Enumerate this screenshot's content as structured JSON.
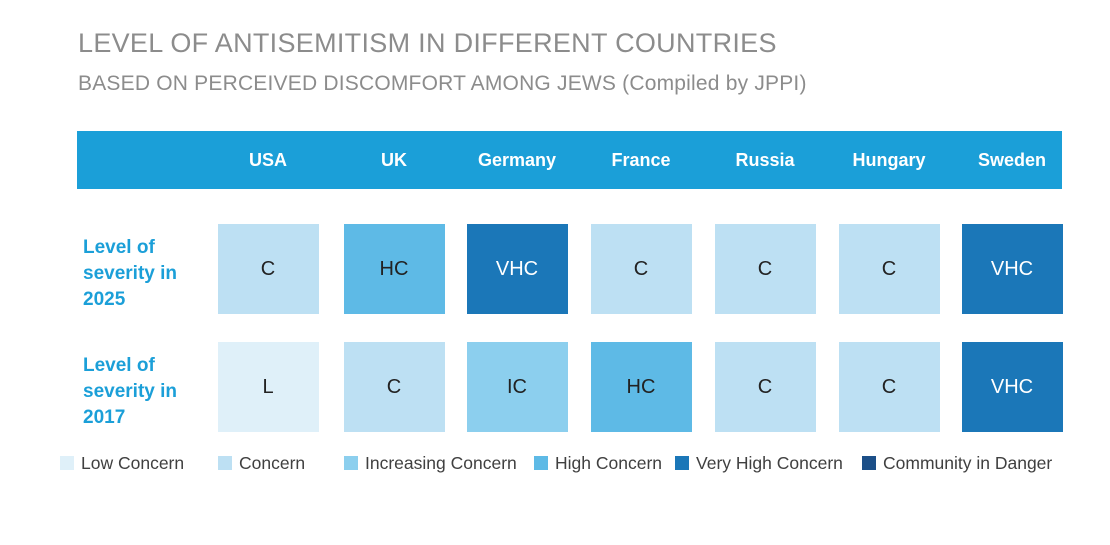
{
  "title": "LEVEL OF ANTISEMITISM IN DIFFERENT COUNTRIES",
  "subtitle": "BASED ON PERCEIVED DISCOMFORT AMONG JEWS  (Compiled by JPPI)",
  "chart_data": {
    "type": "table",
    "title": "LEVEL OF ANTISEMITISM IN DIFFERENT COUNTRIES",
    "subtitle": "BASED ON PERCEIVED DISCOMFORT AMONG JEWS  (Compiled by JPPI)",
    "columns": [
      "USA",
      "UK",
      "Germany",
      "France",
      "Russia",
      "Hungary",
      "Sweden"
    ],
    "rows": [
      {
        "label": "Level of severity in 2025",
        "values": [
          "C",
          "HC",
          "VHC",
          "C",
          "C",
          "C",
          "VHC"
        ]
      },
      {
        "label": "Level of severity in 2017",
        "values": [
          "L",
          "C",
          "IC",
          "HC",
          "C",
          "C",
          "VHC"
        ]
      }
    ],
    "legend": [
      {
        "code": "L",
        "label": "Low Concern",
        "color": "#dff0f9"
      },
      {
        "code": "C",
        "label": "Concern",
        "color": "#bde0f3"
      },
      {
        "code": "IC",
        "label": "Increasing Concern",
        "color": "#8ccfee"
      },
      {
        "code": "HC",
        "label": "High Concern",
        "color": "#5ebae6"
      },
      {
        "code": "VHC",
        "label": "Very High Concern",
        "color": "#1b77b8"
      },
      {
        "code": "CD",
        "label": "Community in Danger",
        "color": "#1c4f88"
      }
    ]
  }
}
